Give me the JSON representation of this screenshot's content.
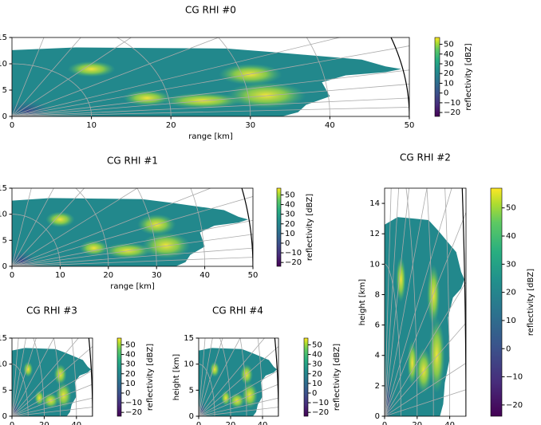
{
  "chart_data": [
    {
      "type": "heatmap",
      "title": "CG RHI #0",
      "x_label": "range [km]",
      "xlim": [
        0,
        50
      ],
      "xticks": [
        0,
        10,
        20,
        30,
        40,
        50
      ],
      "ylim": [
        0,
        15
      ],
      "yticks": [
        0,
        5,
        10,
        15
      ],
      "colorbar": {
        "label": "reflectivity [dBZ]",
        "lim": [
          -24,
          57
        ],
        "ticks": [
          {
            "value": -20,
            "label": "−20"
          },
          {
            "value": -10,
            "label": "−10"
          },
          0,
          10,
          20,
          30,
          40,
          50
        ]
      }
    },
    {
      "type": "heatmap",
      "title": "CG RHI #1",
      "x_label": "range [km]",
      "xlim": [
        0,
        50
      ],
      "xticks": [
        0,
        10,
        20,
        30,
        40,
        50
      ],
      "ylim": [
        0,
        15
      ],
      "yticks": [
        0,
        5,
        10,
        15
      ],
      "colorbar": {
        "label": "reflectivity [dBZ]",
        "lim": [
          -24,
          57
        ],
        "ticks": [
          {
            "value": -20,
            "label": "−20"
          },
          {
            "value": -10,
            "label": "−10"
          },
          0,
          10,
          20,
          30,
          40,
          50
        ]
      }
    },
    {
      "type": "heatmap",
      "title": "CG RHI #2",
      "y_label": "height [km]",
      "xlim": [
        0,
        50
      ],
      "xticks": [
        0,
        20,
        40
      ],
      "ylim": [
        0,
        15
      ],
      "yticks": [
        0,
        2,
        4,
        6,
        8,
        10,
        12,
        14
      ],
      "colorbar": {
        "label": "reflectivity [dBZ]",
        "lim": [
          -24,
          57
        ],
        "ticks": [
          {
            "value": -20,
            "label": "−20"
          },
          {
            "value": -10,
            "label": "−10"
          },
          0,
          10,
          20,
          30,
          40,
          50
        ]
      }
    },
    {
      "type": "heatmap",
      "title": "CG RHI #3",
      "xlim": [
        0,
        50
      ],
      "xticks": [
        0,
        20,
        40
      ],
      "ylim": [
        0,
        15
      ],
      "yticks": [
        0,
        5,
        10,
        15
      ],
      "colorbar": {
        "label": "reflectivity [dBZ]",
        "lim": [
          -24,
          57
        ],
        "ticks": [
          {
            "value": -20,
            "label": "−20"
          },
          {
            "value": -10,
            "label": "−10"
          },
          0,
          10,
          20,
          30,
          40,
          50
        ]
      }
    },
    {
      "type": "heatmap",
      "title": "CG RHI #4",
      "y_label": "height [km]",
      "xlim": [
        0,
        50
      ],
      "xticks": [
        0,
        20,
        40
      ],
      "ylim": [
        0,
        15
      ],
      "yticks": [
        0,
        5,
        10,
        15
      ],
      "colorbar": {
        "label": "reflectivity [dBZ]",
        "lim": [
          -24,
          57
        ],
        "ticks": [
          {
            "value": -20,
            "label": "−20"
          },
          {
            "value": -10,
            "label": "−10"
          },
          0,
          10,
          20,
          30,
          40,
          50
        ]
      }
    }
  ]
}
